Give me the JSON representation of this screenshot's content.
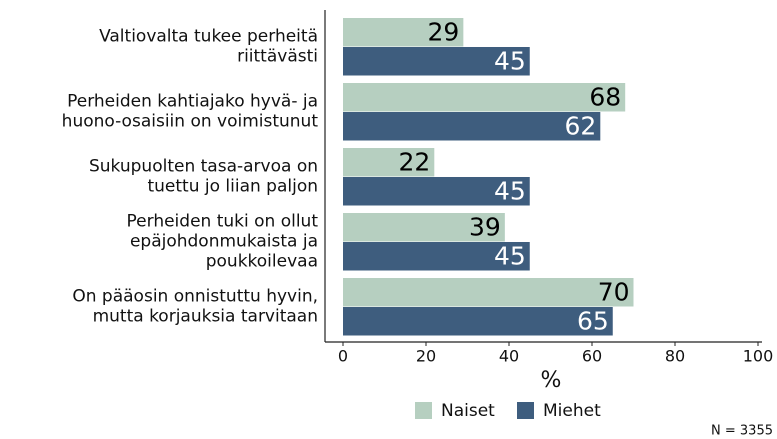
{
  "chart_data": {
    "type": "bar",
    "orientation": "horizontal",
    "categories": [
      [
        "Valtiovalta tukee perheitä",
        "riittävästi"
      ],
      [
        "Perheiden kahtiajako hyvä- ja",
        "huono-osaisiin on voimistunut"
      ],
      [
        "Sukupuolten tasa-arvoa on",
        "tuettu jo liian paljon"
      ],
      [
        "Perheiden tuki on ollut",
        "epäjohdonmukaista ja",
        "poukkoilevaa"
      ],
      [
        "On pääosin onnistuttu hyvin,",
        "mutta korjauksia tarvitaan"
      ]
    ],
    "series": [
      {
        "name": "Naiset",
        "color": "#b6cfc0",
        "values": [
          29,
          68,
          22,
          39,
          70
        ]
      },
      {
        "name": "Miehet",
        "color": "#3e5d7e",
        "values": [
          45,
          62,
          45,
          45,
          65
        ]
      }
    ],
    "xlabel": "%",
    "xlim": [
      0,
      100
    ],
    "xticks": [
      0,
      20,
      40,
      60,
      80,
      100
    ],
    "note": "N = 3355"
  }
}
